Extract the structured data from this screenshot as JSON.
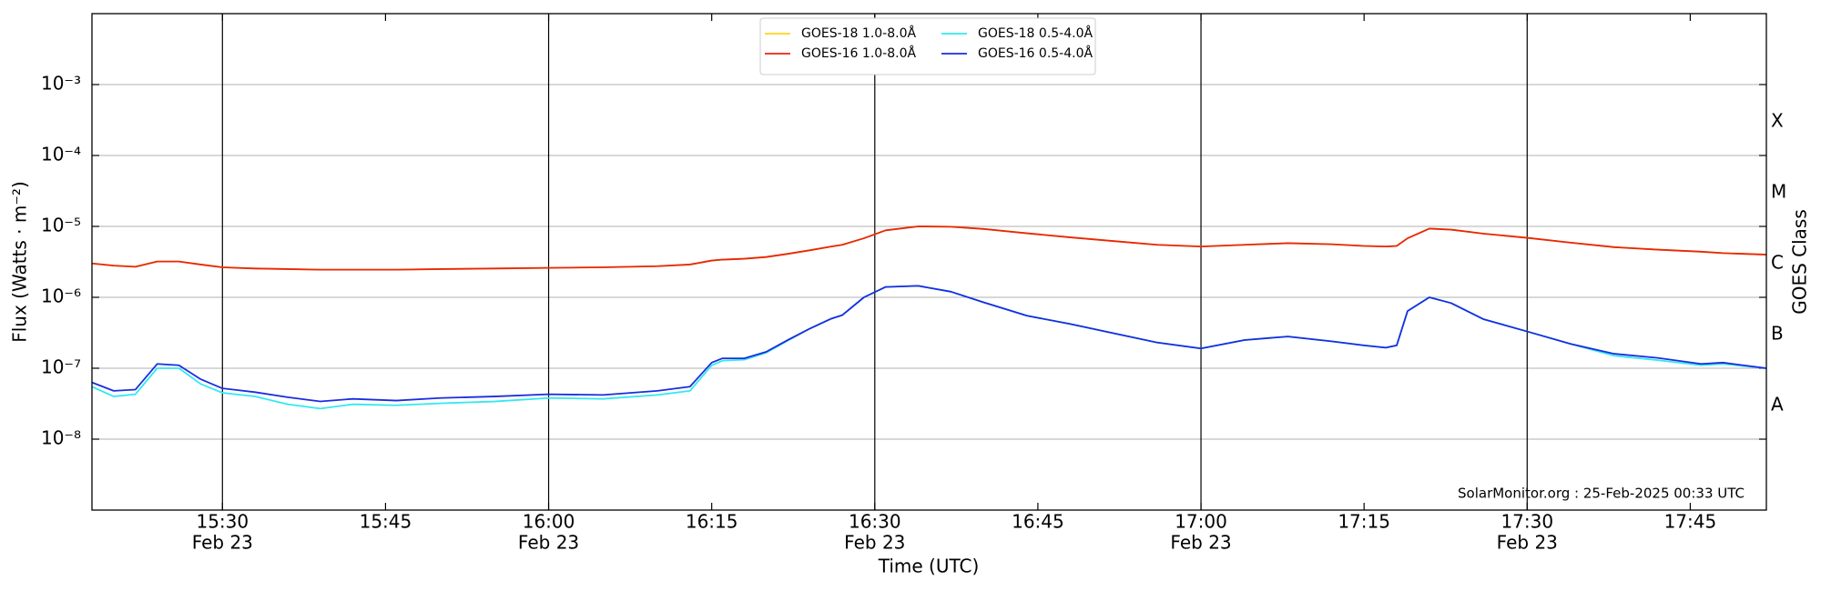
{
  "chart_data": {
    "type": "line",
    "ylabel": "Flux (Watts · m⁻²)",
    "xlabel": "Time (UTC)",
    "y2label": "GOES Class",
    "annotation": "SolarMonitor.org : 25-Feb-2025 00:33 UTC",
    "log_scale": true,
    "grid": true,
    "legend": "top",
    "xlim": [
      "15:18",
      "17:52"
    ],
    "xticks": [
      {
        "value": "15:30",
        "label": "15:30",
        "date": "Feb 23"
      },
      {
        "value": "15:45",
        "label": "15:45"
      },
      {
        "value": "16:00",
        "label": "16:00",
        "date": "Feb 23"
      },
      {
        "value": "16:15",
        "label": "16:15"
      },
      {
        "value": "16:30",
        "label": "16:30",
        "date": "Feb 23"
      },
      {
        "value": "16:45",
        "label": "16:45"
      },
      {
        "value": "17:00",
        "label": "17:00",
        "date": "Feb 23"
      },
      {
        "value": "17:15",
        "label": "17:15"
      },
      {
        "value": "17:30",
        "label": "17:30",
        "date": "Feb 23"
      },
      {
        "value": "17:45",
        "label": "17:45"
      }
    ],
    "ylim": [
      1e-09,
      0.01
    ],
    "yticks": [
      {
        "value": 1e-08,
        "label": "10⁻⁸"
      },
      {
        "value": 1e-07,
        "label": "10⁻⁷"
      },
      {
        "value": 1e-06,
        "label": "10⁻⁶"
      },
      {
        "value": 1e-05,
        "label": "10⁻⁵"
      },
      {
        "value": 0.0001,
        "label": "10⁻⁴"
      },
      {
        "value": 0.001,
        "label": "10⁻³"
      }
    ],
    "y2lim": [
      1e-09,
      0.01
    ],
    "y2ticks": [
      {
        "value": 3e-08,
        "label": "A"
      },
      {
        "value": 3e-07,
        "label": "B"
      },
      {
        "value": 3e-06,
        "label": "C"
      },
      {
        "value": 3e-05,
        "label": "M"
      },
      {
        "value": 0.0003,
        "label": "X"
      }
    ],
    "x": [
      "15:18",
      "15:20",
      "15:22",
      "15:24",
      "15:26",
      "15:28",
      "15:30",
      "15:33",
      "15:36",
      "15:39",
      "15:42",
      "15:46",
      "15:50",
      "15:55",
      "16:00",
      "16:05",
      "16:10",
      "16:13",
      "16:15",
      "16:16",
      "16:18",
      "16:20",
      "16:22",
      "16:24",
      "16:26",
      "16:27",
      "16:29",
      "16:31",
      "16:34",
      "16:37",
      "16:40",
      "16:44",
      "16:48",
      "16:52",
      "16:56",
      "17:00",
      "17:04",
      "17:08",
      "17:12",
      "17:15",
      "17:17",
      "17:18",
      "17:19",
      "17:21",
      "17:23",
      "17:26",
      "17:30",
      "17:34",
      "17:38",
      "17:42",
      "17:46",
      "17:48",
      "17:52"
    ],
    "series": [
      {
        "name": "GOES-18 1.0-8.0Å",
        "color": "#ffd21a",
        "values": [
          3e-06,
          2.8e-06,
          2.7e-06,
          3.2e-06,
          3.2e-06,
          2.9e-06,
          2.65e-06,
          2.55e-06,
          2.5e-06,
          2.45e-06,
          2.45e-06,
          2.45e-06,
          2.5e-06,
          2.55e-06,
          2.6e-06,
          2.65e-06,
          2.75e-06,
          2.9e-06,
          3.3e-06,
          3.4e-06,
          3.5e-06,
          3.7e-06,
          4.1e-06,
          4.6e-06,
          5.2e-06,
          5.5e-06,
          6.8e-06,
          8.8e-06,
          1e-05,
          9.9e-06,
          9.2e-06,
          8e-06,
          7e-06,
          6.2e-06,
          5.5e-06,
          5.2e-06,
          5.5e-06,
          5.8e-06,
          5.6e-06,
          5.3e-06,
          5.2e-06,
          5.3e-06,
          6.8e-06,
          9.3e-06,
          9e-06,
          7.9e-06,
          6.9e-06,
          5.9e-06,
          5.1e-06,
          4.7e-06,
          4.4e-06,
          4.2e-06,
          4e-06
        ]
      },
      {
        "name": "GOES-16 1.0-8.0Å",
        "color": "#e8260c",
        "values": [
          3e-06,
          2.8e-06,
          2.7e-06,
          3.2e-06,
          3.2e-06,
          2.9e-06,
          2.65e-06,
          2.55e-06,
          2.5e-06,
          2.45e-06,
          2.45e-06,
          2.45e-06,
          2.5e-06,
          2.55e-06,
          2.6e-06,
          2.65e-06,
          2.75e-06,
          2.9e-06,
          3.3e-06,
          3.4e-06,
          3.5e-06,
          3.7e-06,
          4.1e-06,
          4.6e-06,
          5.2e-06,
          5.5e-06,
          6.8e-06,
          8.8e-06,
          1e-05,
          9.9e-06,
          9.2e-06,
          8e-06,
          7e-06,
          6.2e-06,
          5.5e-06,
          5.2e-06,
          5.5e-06,
          5.8e-06,
          5.6e-06,
          5.3e-06,
          5.2e-06,
          5.3e-06,
          6.8e-06,
          9.3e-06,
          9e-06,
          7.9e-06,
          6.9e-06,
          5.9e-06,
          5.1e-06,
          4.7e-06,
          4.4e-06,
          4.2e-06,
          4e-06
        ]
      },
      {
        "name": "GOES-18 0.5-4.0Å",
        "color": "#33e8f0",
        "values": [
          5.5e-08,
          4e-08,
          4.3e-08,
          1e-07,
          1e-07,
          6e-08,
          4.5e-08,
          4e-08,
          3.1e-08,
          2.7e-08,
          3.1e-08,
          3e-08,
          3.2e-08,
          3.4e-08,
          3.8e-08,
          3.7e-08,
          4.2e-08,
          4.8e-08,
          1.1e-07,
          1.28e-07,
          1.32e-07,
          1.65e-07,
          2.45e-07,
          3.6e-07,
          5e-07,
          5.6e-07,
          1e-06,
          1.4e-06,
          1.45e-06,
          1.2e-06,
          8.5e-07,
          5.5e-07,
          4.2e-07,
          3.1e-07,
          2.3e-07,
          1.9e-07,
          2.5e-07,
          2.8e-07,
          2.4e-07,
          2.1e-07,
          1.95e-07,
          2.1e-07,
          6.4e-07,
          1e-06,
          8.3e-07,
          4.9e-07,
          3.3e-07,
          2.2e-07,
          1.5e-07,
          1.3e-07,
          1.1e-07,
          1.15e-07,
          1e-07
        ]
      },
      {
        "name": "GOES-16 0.5-4.0Å",
        "color": "#1a2de0",
        "values": [
          6.3e-08,
          4.8e-08,
          5e-08,
          1.15e-07,
          1.1e-07,
          7e-08,
          5.2e-08,
          4.6e-08,
          3.9e-08,
          3.4e-08,
          3.7e-08,
          3.5e-08,
          3.8e-08,
          4e-08,
          4.3e-08,
          4.2e-08,
          4.8e-08,
          5.5e-08,
          1.2e-07,
          1.38e-07,
          1.38e-07,
          1.7e-07,
          2.5e-07,
          3.6e-07,
          5e-07,
          5.6e-07,
          1e-06,
          1.4e-06,
          1.45e-06,
          1.2e-06,
          8.5e-07,
          5.5e-07,
          4.2e-07,
          3.1e-07,
          2.3e-07,
          1.9e-07,
          2.5e-07,
          2.8e-07,
          2.4e-07,
          2.1e-07,
          1.95e-07,
          2.1e-07,
          6.4e-07,
          1e-06,
          8.3e-07,
          4.9e-07,
          3.3e-07,
          2.2e-07,
          1.6e-07,
          1.4e-07,
          1.15e-07,
          1.2e-07,
          1e-07
        ]
      }
    ]
  }
}
